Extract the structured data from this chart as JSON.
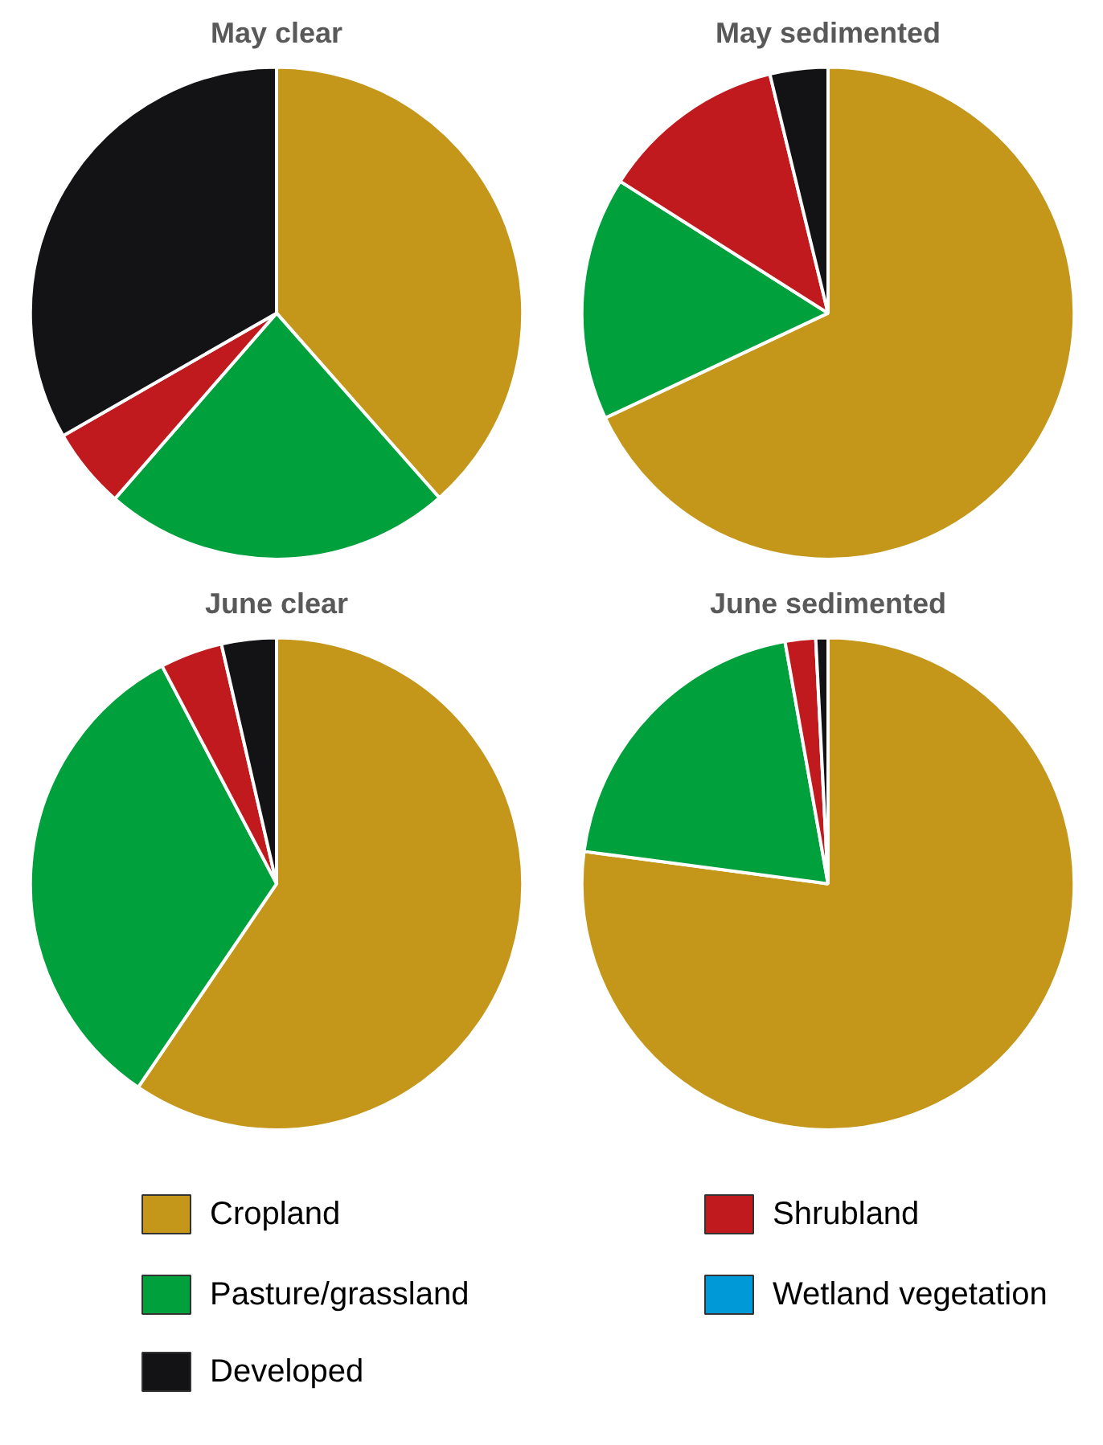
{
  "chart_data": [
    {
      "type": "pie",
      "title": "May clear",
      "categories": [
        "Cropland",
        "Pasture/grassland",
        "Shrubland",
        "Wetland vegetation",
        "Developed"
      ],
      "values": [
        38.5,
        22.9,
        5.3,
        0,
        33.3
      ],
      "colors": [
        "#c4961a",
        "#00a03c",
        "#c0191e",
        "#0099d8",
        "#131316"
      ],
      "legend": "bottom"
    },
    {
      "type": "pie",
      "title": "May sedimented",
      "categories": [
        null,
        null,
        null,
        null,
        null
      ],
      "values": [
        68,
        16,
        12.2,
        0,
        3.8
      ],
      "colors": [
        "#c4961a",
        "#00a03c",
        "#c0191e",
        "#0099d8",
        "#131316"
      ]
    },
    {
      "type": "pie",
      "title": "June clear",
      "categories": [
        null,
        null,
        null,
        null,
        null
      ],
      "values": [
        59.5,
        32.8,
        4.1,
        0,
        3.6
      ],
      "colors": [
        "#c4961a",
        "#00a03c",
        "#c0191e",
        "#0099d8",
        "#131316"
      ]
    },
    {
      "type": "pie",
      "title": "June sedimented",
      "categories": [
        null,
        null,
        null,
        null,
        null
      ],
      "values": [
        77.1,
        20.1,
        2.0,
        0,
        0.8
      ],
      "colors": [
        "#c4961a",
        "#00a03c",
        "#c0191e",
        "#0099d8",
        "#131316"
      ]
    }
  ]
}
